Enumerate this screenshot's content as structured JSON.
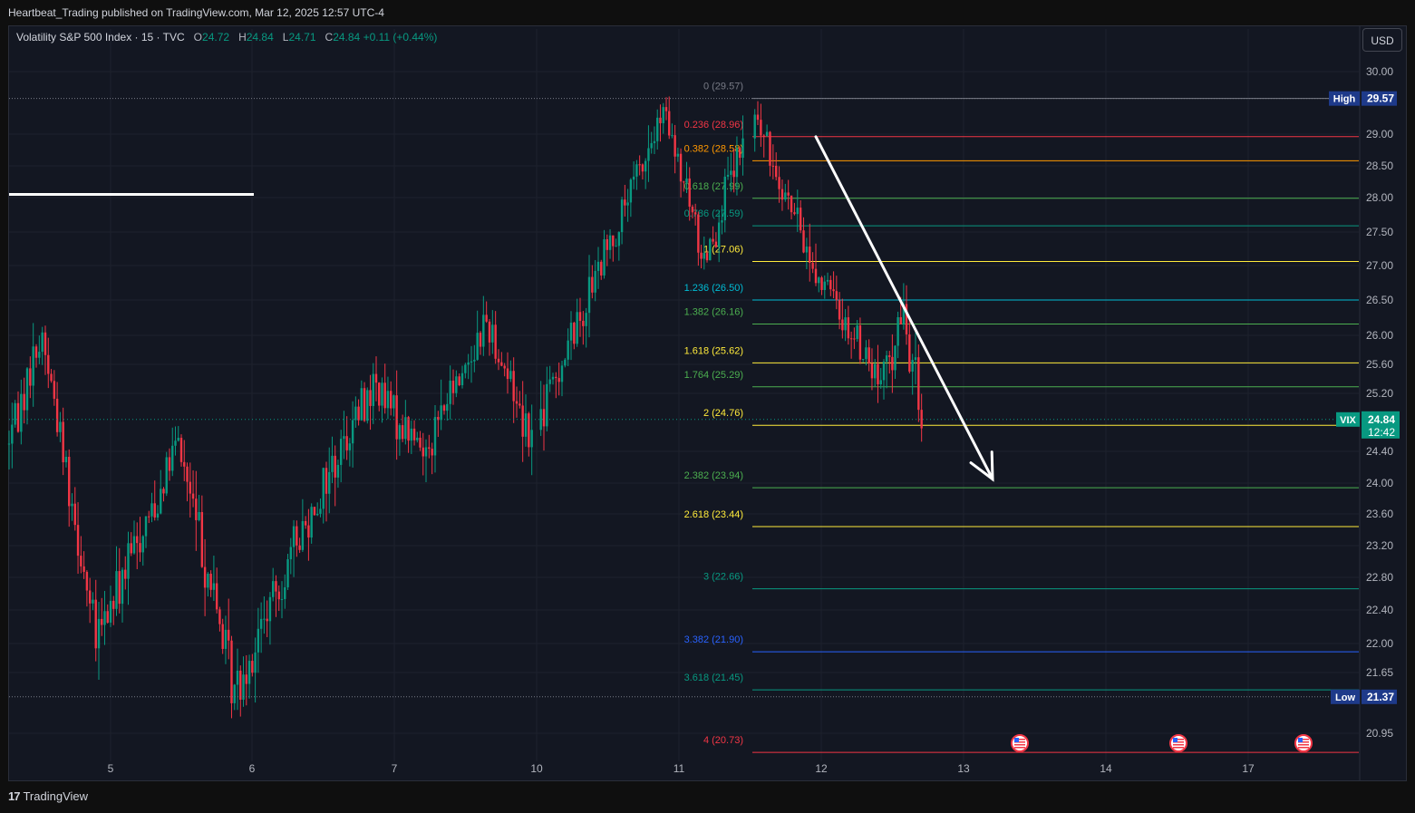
{
  "header": {
    "publish_line": "Heartbeat_Trading published on TradingView.com, Mar 12, 2025 12:57 UTC-4"
  },
  "legend": {
    "symbol": "Volatility S&P 500 Index · 15 · TVC",
    "o_label": "O",
    "o_value": "24.72",
    "h_label": "H",
    "h_value": "24.84",
    "l_label": "L",
    "l_value": "24.71",
    "c_label": "C",
    "c_value": "24.84",
    "change": "+0.11 (+0.44%)"
  },
  "currency": "USD",
  "footer": {
    "brand": "TradingView",
    "logo": "17"
  },
  "colors": {
    "up": "#089981",
    "down": "#f23645",
    "background": "#131722",
    "grid": "#1e222d",
    "axis_text": "#b2b5be"
  },
  "chart_data": {
    "type": "candlestick",
    "symbol": "VIX",
    "interval": "15",
    "ylim": [
      20.73,
      30.2
    ],
    "price_axis_ticks": [
      "30.00",
      "29.00",
      "28.50",
      "28.00",
      "27.50",
      "27.00",
      "26.50",
      "26.00",
      "25.60",
      "25.20",
      "24.40",
      "24.00",
      "23.60",
      "23.20",
      "22.80",
      "22.40",
      "22.00",
      "21.65",
      "20.95"
    ],
    "time_axis_ticks": [
      "5",
      "6",
      "7",
      "10",
      "11",
      "12",
      "13",
      "14",
      "17"
    ],
    "series": [
      {
        "name": "VIX 15m",
        "shape": [
          {
            "x": "4 start",
            "close": 24.5
          },
          {
            "x": "4 mid",
            "close": 26.0
          },
          {
            "x": "5",
            "close": 22.0
          },
          {
            "x": "5 mid",
            "close": 24.5
          },
          {
            "x": "6",
            "close": 21.4
          },
          {
            "x": "6 mid",
            "close": 24.0
          },
          {
            "x": "7",
            "close": 25.3
          },
          {
            "x": "7 mid",
            "close": 24.4
          },
          {
            "x": "7 late",
            "close": 26.2
          },
          {
            "x": "10",
            "close": 24.6
          },
          {
            "x": "10 mid",
            "close": 26.8
          },
          {
            "x": "11",
            "close": 29.3
          },
          {
            "x": "11 mid",
            "close": 27.1
          },
          {
            "x": "11 late",
            "close": 29.3
          },
          {
            "x": "12",
            "close": 27.0
          },
          {
            "x": "12 mid",
            "close": 25.3
          },
          {
            "x": "12 late",
            "close": 26.3
          },
          {
            "x": "12 end",
            "close": 24.84
          }
        ]
      }
    ],
    "fib_levels": [
      {
        "ratio": "0",
        "price": 29.57,
        "label": "0 (29.57)",
        "color": "#787b86"
      },
      {
        "ratio": "0.236",
        "price": 28.96,
        "label": "0.236 (28.96)",
        "color": "#f23645"
      },
      {
        "ratio": "0.382",
        "price": 28.58,
        "label": "0.382 (28.58)",
        "color": "#ff9800"
      },
      {
        "ratio": "0.618",
        "price": 27.99,
        "label": "0.618 (27.99)",
        "color": "#4caf50"
      },
      {
        "ratio": "0.786",
        "price": 27.59,
        "label": "0.786 (27.59)",
        "color": "#089981"
      },
      {
        "ratio": "1",
        "price": 27.06,
        "label": "1 (27.06)",
        "color": "#ffeb3b"
      },
      {
        "ratio": "1.236",
        "price": 26.5,
        "label": "1.236 (26.50)",
        "color": "#00bcd4"
      },
      {
        "ratio": "1.382",
        "price": 26.16,
        "label": "1.382 (26.16)",
        "color": "#4caf50"
      },
      {
        "ratio": "1.618",
        "price": 25.62,
        "label": "1.618 (25.62)",
        "color": "#ffeb3b"
      },
      {
        "ratio": "1.764",
        "price": 25.29,
        "label": "1.764 (25.29)",
        "color": "#4caf50"
      },
      {
        "ratio": "2",
        "price": 24.76,
        "label": "2 (24.76)",
        "color": "#ffeb3b"
      },
      {
        "ratio": "2.382",
        "price": 23.94,
        "label": "2.382 (23.94)",
        "color": "#4caf50"
      },
      {
        "ratio": "2.618",
        "price": 23.44,
        "label": "2.618 (23.44)",
        "color": "#ffeb3b"
      },
      {
        "ratio": "3",
        "price": 22.66,
        "label": "3 (22.66)",
        "color": "#089981"
      },
      {
        "ratio": "3.382",
        "price": 21.9,
        "label": "3.382 (21.90)",
        "color": "#2962ff"
      },
      {
        "ratio": "3.618",
        "price": 21.45,
        "label": "3.618 (21.45)",
        "color": "#089981"
      },
      {
        "ratio": "4",
        "price": 20.73,
        "label": "4 (20.73)",
        "color": "#f23645"
      }
    ],
    "high": {
      "label": "High",
      "price": "29.57"
    },
    "low": {
      "label": "Low",
      "price": "21.37"
    },
    "last": {
      "symbol": "VIX",
      "price": "24.84",
      "countdown": "12:42",
      "value": 24.84
    },
    "annotations": [
      {
        "type": "horizontal_line",
        "color": "#ffffff",
        "price": 28.05,
        "x_from": "4 start",
        "x_to": "6"
      },
      {
        "type": "arrow",
        "color": "#ffffff",
        "from": {
          "x": "12",
          "price": 28.96
        },
        "to": {
          "x": "13 mid",
          "price": 24.05
        }
      }
    ],
    "event_markers": [
      {
        "type": "us-flag",
        "x": "13 late"
      },
      {
        "type": "us-flag",
        "x": "14 late"
      },
      {
        "type": "us-flag",
        "x": "17 late"
      }
    ],
    "grid": true,
    "legend_position": "top-left"
  }
}
